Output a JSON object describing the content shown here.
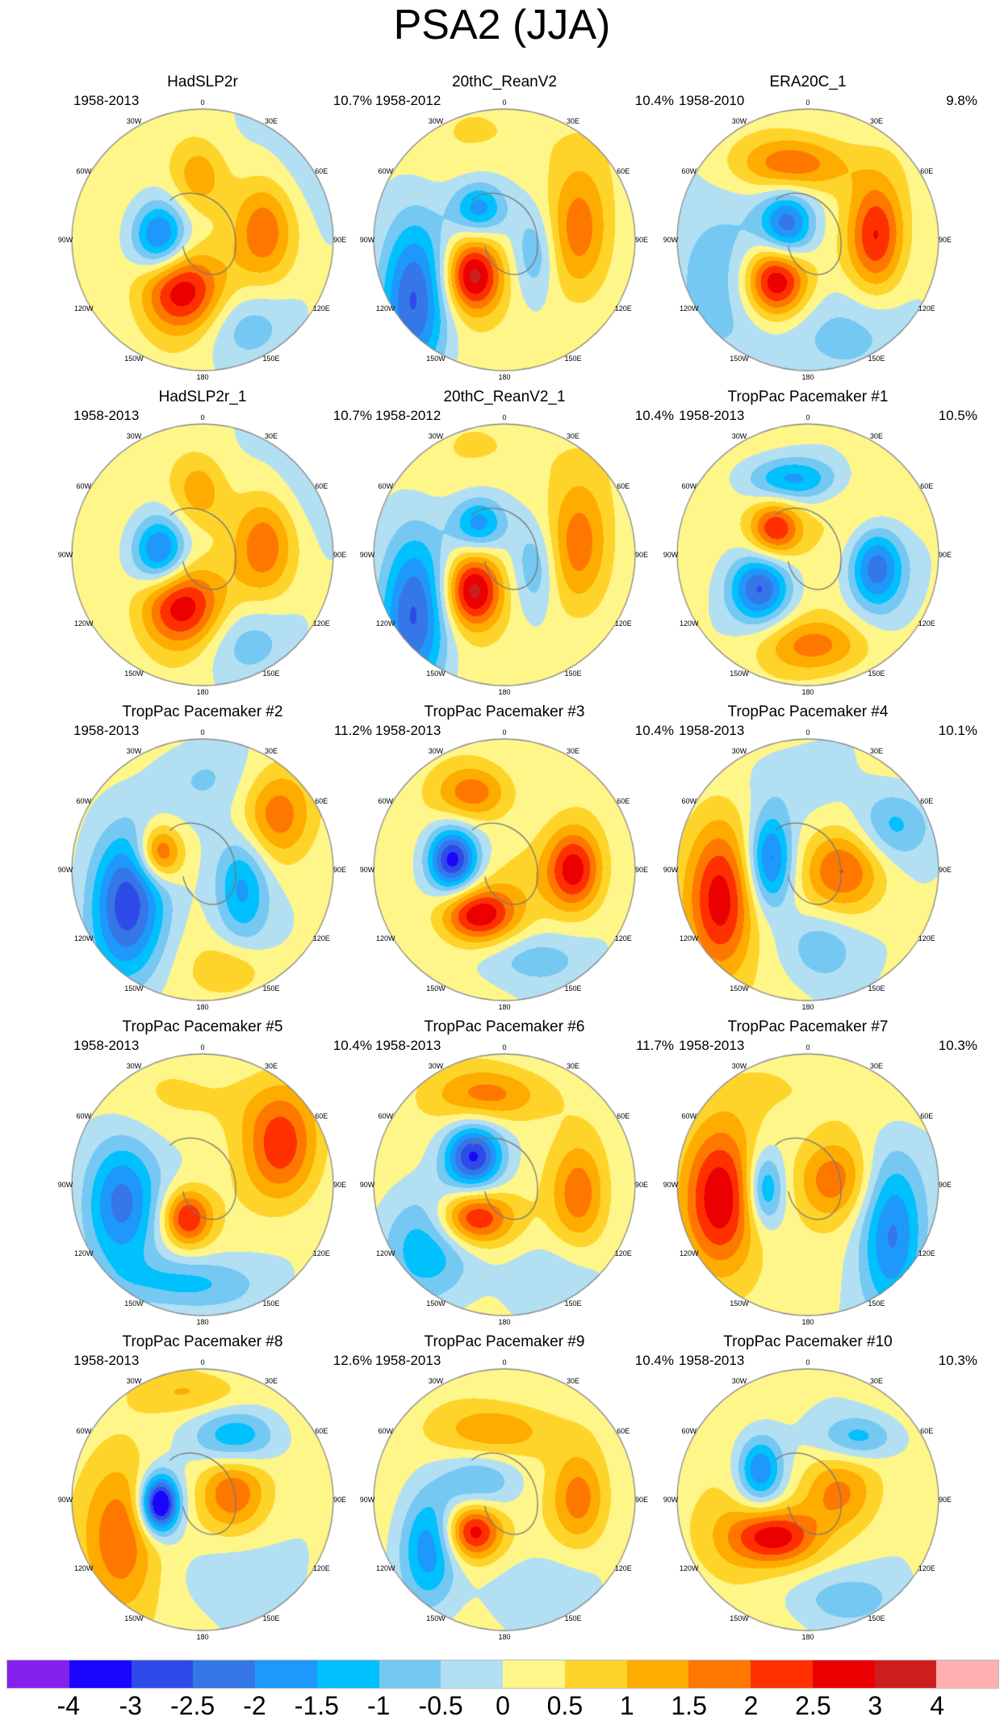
{
  "title": "PSA2 (JJA)",
  "lon_labels": [
    "0",
    "30E",
    "60E",
    "90E",
    "120E",
    "150E",
    "180",
    "150W",
    "120W",
    "90W",
    "60W",
    "30W"
  ],
  "panels": [
    {
      "title": "HadSLP2r",
      "years": "1958-2013",
      "percent": "10.7%"
    },
    {
      "title": "20thC_ReanV2",
      "years": "1958-2012",
      "percent": "10.4%"
    },
    {
      "title": "ERA20C_1",
      "years": "1958-2010",
      "percent": "9.8%"
    },
    {
      "title": "HadSLP2r_1",
      "years": "1958-2013",
      "percent": "10.7%"
    },
    {
      "title": "20thC_ReanV2_1",
      "years": "1958-2012",
      "percent": "10.4%"
    },
    {
      "title": "TropPac Pacemaker #1",
      "years": "1958-2013",
      "percent": "10.5%"
    },
    {
      "title": "TropPac Pacemaker #2",
      "years": "1958-2013",
      "percent": "11.2%"
    },
    {
      "title": "TropPac Pacemaker #3",
      "years": "1958-2013",
      "percent": "10.4%"
    },
    {
      "title": "TropPac Pacemaker #4",
      "years": "1958-2013",
      "percent": "10.1%"
    },
    {
      "title": "TropPac Pacemaker #5",
      "years": "1958-2013",
      "percent": "10.4%"
    },
    {
      "title": "TropPac Pacemaker #6",
      "years": "1958-2013",
      "percent": "11.7%"
    },
    {
      "title": "TropPac Pacemaker #7",
      "years": "1958-2013",
      "percent": "10.3%"
    },
    {
      "title": "TropPac Pacemaker #8",
      "years": "1958-2013",
      "percent": "12.6%"
    },
    {
      "title": "TropPac Pacemaker #9",
      "years": "1958-2013",
      "percent": "10.4%"
    },
    {
      "title": "TropPac Pacemaker #10",
      "years": "1958-2013",
      "percent": "10.3%"
    }
  ],
  "chart_data": {
    "type": "heatmap",
    "title": "PSA2 (JJA)",
    "projection": "south polar stereographic",
    "colorbar": {
      "levels": [
        "-4",
        "-3",
        "-2.5",
        "-2",
        "-1.5",
        "-1",
        "-0.5",
        "0",
        "0.5",
        "1",
        "1.5",
        "2",
        "2.5",
        "3",
        "4"
      ],
      "colors": [
        "#8521ee",
        "#1b05fc",
        "#2e4be9",
        "#3577e7",
        "#1e99fb",
        "#00c0fd",
        "#75c8f2",
        "#b3dff3",
        "#fff68a",
        "#fed42b",
        "#feac00",
        "#fe7800",
        "#fe3000",
        "#ea0000",
        "#cf1e1e",
        "#ffb0b0"
      ],
      "placement": "bottom"
    }
  }
}
